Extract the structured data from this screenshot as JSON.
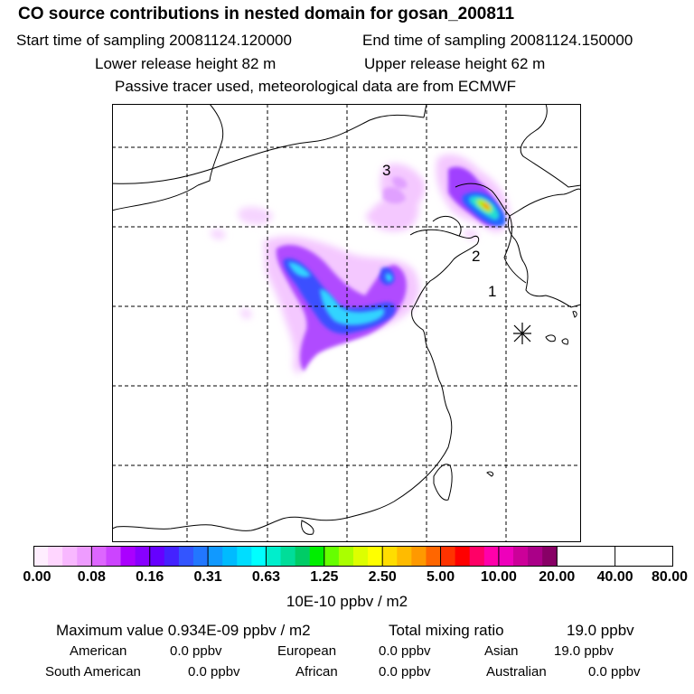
{
  "header": {
    "title": "CO  source contributions in nested domain for gosan_200811",
    "start_label": "Start time of sampling 20081124.120000",
    "end_label": "End time of sampling 20081124.150000",
    "lower_label": "Lower release height   82 m",
    "upper_label": "Upper release height   62 m",
    "note": "Passive tracer used, meteorological data are from ECMWF"
  },
  "map": {
    "markers": [
      "1",
      "2",
      "3"
    ],
    "station_symbol": "gosan-station-asterisk"
  },
  "colorbar": {
    "colors": [
      "#ffeeff",
      "#ffd6ff",
      "#f8b8ff",
      "#ee9cff",
      "#dd66ff",
      "#cc44ff",
      "#aa00ff",
      "#8800ff",
      "#6600ff",
      "#4422ff",
      "#3355ff",
      "#2277ff",
      "#1199ff",
      "#00bbff",
      "#00ddff",
      "#00ffff",
      "#00eecc",
      "#00dd99",
      "#00cc66",
      "#00ee00",
      "#66ff00",
      "#aaff00",
      "#ddff00",
      "#ffff00",
      "#ffdd00",
      "#ffbb00",
      "#ff9900",
      "#ff6600",
      "#ff3300",
      "#ff0000",
      "#ff0066",
      "#ff00aa",
      "#ee00bb",
      "#cc0099",
      "#aa0088",
      "#880066"
    ],
    "tick_labels": [
      "0.00",
      "0.08",
      "0.16",
      "0.31",
      "0.63",
      "1.25",
      "2.50",
      "5.00",
      "10.00",
      "20.00",
      "40.00",
      "80.00"
    ],
    "unit": "10E-10 ppbv / m2"
  },
  "summary": {
    "max_value": "Maximum value  0.934E-09 ppbv / m2",
    "total": "Total mixing ratio",
    "total_value": "19.0 ppbv",
    "regions": [
      {
        "name": "American",
        "value": "0.0 ppbv"
      },
      {
        "name": "European",
        "value": "0.0 ppbv"
      },
      {
        "name": "Asian",
        "value": "19.0 ppbv"
      },
      {
        "name": "South American",
        "value": "0.0 ppbv"
      },
      {
        "name": "African",
        "value": "0.0 ppbv"
      },
      {
        "name": "Australian",
        "value": "0.0 ppbv"
      }
    ]
  }
}
